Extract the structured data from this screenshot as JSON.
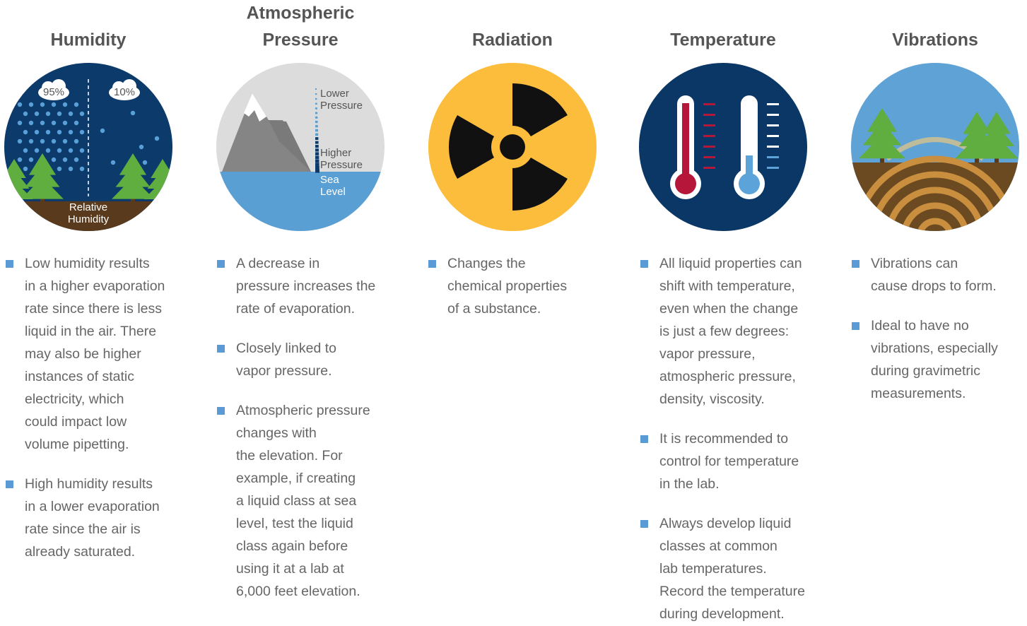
{
  "columns": [
    {
      "title": [
        "Humidity"
      ],
      "icon_labels": [
        "95%",
        "10%",
        "Relative",
        "Humidity"
      ],
      "bullets": [
        [
          "Low humidity results",
          "in a higher evaporation",
          "rate since there is less",
          "liquid in the air. There",
          "may also be higher",
          "instances of static",
          "electricity, which",
          "could impact low",
          "volume pipetting."
        ],
        [
          "High humidity results",
          "in a lower evaporation",
          "rate since the air is",
          "already saturated."
        ]
      ]
    },
    {
      "title": [
        "Atmospheric",
        "Pressure"
      ],
      "icon_labels": [
        "Lower",
        "Pressure",
        "Higher",
        "Pressure",
        "Sea",
        "Level"
      ],
      "bullets": [
        [
          "A decrease in",
          "pressure increases the",
          "rate of evaporation."
        ],
        [
          "Closely linked to",
          "vapor pressure."
        ],
        [
          "Atmospheric pressure",
          "changes with",
          "the elevation. For",
          "example, if creating",
          "a liquid class at sea",
          "level, test the liquid",
          "class again before",
          "using it at a lab at",
          "6,000 feet elevation."
        ]
      ]
    },
    {
      "title": [
        "Radiation"
      ],
      "icon_labels": [],
      "bullets": [
        [
          "Changes the",
          "chemical properties",
          "of a substance."
        ]
      ]
    },
    {
      "title": [
        "Temperature"
      ],
      "icon_labels": [],
      "bullets": [
        [
          "All liquid properties can",
          "shift with temperature,",
          "even when the change",
          "is just a few degrees:",
          "vapor pressure,",
          "atmospheric pressure,",
          "density, viscosity."
        ],
        [
          "It is recommended to",
          "control for temperature",
          "in the lab."
        ],
        [
          "Always develop liquid",
          "classes at common",
          "lab temperatures.",
          "Record the temperature",
          "during development."
        ]
      ]
    },
    {
      "title": [
        "Vibrations"
      ],
      "icon_labels": [],
      "bullets": [
        [
          "Vibrations can",
          "cause drops to form."
        ],
        [
          "Ideal to have no",
          "vibrations, especially",
          "during gravimetric",
          "measurements."
        ]
      ]
    }
  ]
}
